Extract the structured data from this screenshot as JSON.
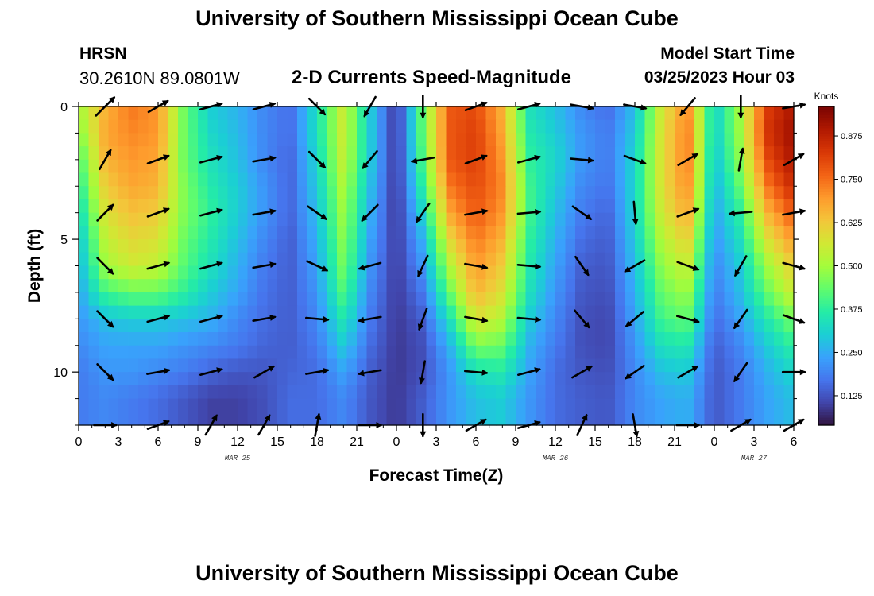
{
  "header": {
    "title": "University of Southern Mississippi Ocean Cube",
    "station": "HRSN",
    "coordinates": "30.2610N  89.0801W",
    "product": "2-D Currents Speed-Magnitude",
    "model_start_label": "Model Start Time",
    "model_start_value": "03/25/2023 Hour 03"
  },
  "footer": {
    "title": "University of Southern Mississippi Ocean Cube"
  },
  "chart_data": {
    "type": "heatmap",
    "title": "2-D Currents Speed-Magnitude",
    "xlabel": "Forecast Time(Z)",
    "ylabel": "Depth (ft)",
    "x_tick_labels": [
      "0",
      "3",
      "6",
      "9",
      "12",
      "15",
      "18",
      "21",
      "0",
      "3",
      "6",
      "9",
      "12",
      "15",
      "18",
      "21",
      "0",
      "3",
      "6"
    ],
    "x_ticks_hours_since_mar25_00z": [
      0,
      3,
      6,
      9,
      12,
      15,
      18,
      21,
      24,
      27,
      30,
      33,
      36,
      39,
      42,
      45,
      48,
      51,
      54
    ],
    "x_range_hours": [
      0,
      54
    ],
    "date_labels": [
      {
        "text": "MAR 25",
        "hour": 12
      },
      {
        "text": "MAR 26",
        "hour": 36
      },
      {
        "text": "MAR 27",
        "hour": 51
      }
    ],
    "y_tick_labels": [
      "0",
      "5",
      "10"
    ],
    "y_ticks_ft": [
      0,
      5,
      10
    ],
    "y_range_ft": [
      0,
      12
    ],
    "y_inverted": true,
    "colorbar": {
      "units": "Knots",
      "range": [
        0.04,
        0.96
      ],
      "tick_values": [
        0.125,
        0.25,
        0.375,
        0.5,
        0.625,
        0.75,
        0.875
      ],
      "tick_labels": [
        "0.125",
        "0.250",
        "0.375",
        "0.500",
        "0.625",
        "0.750",
        "0.875"
      ],
      "colors": [
        "#30123b",
        "#4145ab",
        "#4675ed",
        "#39a2fc",
        "#1bcfd4",
        "#24eca6",
        "#61fc6c",
        "#a4fc3b",
        "#d1e834",
        "#f3c63a",
        "#fe9b2d",
        "#f36315",
        "#d93806",
        "#b11901",
        "#7a0402"
      ]
    },
    "depth_levels_ft": [
      0,
      1,
      2,
      3,
      4,
      5,
      6,
      7,
      8,
      9,
      10,
      11
    ],
    "grid_hours": [
      0,
      2,
      4,
      6,
      8,
      10,
      12,
      14,
      16,
      18,
      20,
      22,
      24,
      26,
      28,
      30,
      32,
      34,
      36,
      38,
      40,
      42,
      44,
      46,
      48,
      50,
      52,
      54
    ],
    "speed_knots_by_depth": [
      [
        0.5,
        0.66,
        0.74,
        0.7,
        0.44,
        0.3,
        0.26,
        0.2,
        0.16,
        0.34,
        0.56,
        0.3,
        0.08,
        0.44,
        0.78,
        0.8,
        0.66,
        0.34,
        0.28,
        0.2,
        0.16,
        0.28,
        0.56,
        0.72,
        0.3,
        0.5,
        0.82,
        0.9
      ],
      [
        0.46,
        0.68,
        0.72,
        0.7,
        0.44,
        0.32,
        0.27,
        0.2,
        0.16,
        0.34,
        0.56,
        0.3,
        0.08,
        0.44,
        0.78,
        0.82,
        0.68,
        0.36,
        0.3,
        0.22,
        0.18,
        0.3,
        0.58,
        0.74,
        0.3,
        0.5,
        0.84,
        0.92
      ],
      [
        0.4,
        0.66,
        0.7,
        0.68,
        0.44,
        0.34,
        0.28,
        0.2,
        0.15,
        0.32,
        0.55,
        0.3,
        0.08,
        0.42,
        0.78,
        0.82,
        0.7,
        0.38,
        0.32,
        0.22,
        0.18,
        0.32,
        0.58,
        0.74,
        0.28,
        0.48,
        0.8,
        0.9
      ],
      [
        0.36,
        0.62,
        0.68,
        0.66,
        0.46,
        0.36,
        0.3,
        0.22,
        0.15,
        0.3,
        0.52,
        0.28,
        0.08,
        0.38,
        0.74,
        0.8,
        0.72,
        0.4,
        0.3,
        0.2,
        0.17,
        0.32,
        0.58,
        0.72,
        0.26,
        0.44,
        0.74,
        0.86
      ],
      [
        0.32,
        0.58,
        0.64,
        0.62,
        0.46,
        0.38,
        0.3,
        0.22,
        0.15,
        0.28,
        0.5,
        0.26,
        0.08,
        0.32,
        0.68,
        0.78,
        0.7,
        0.4,
        0.28,
        0.18,
        0.15,
        0.32,
        0.56,
        0.68,
        0.24,
        0.38,
        0.66,
        0.78
      ],
      [
        0.28,
        0.54,
        0.6,
        0.58,
        0.44,
        0.36,
        0.28,
        0.2,
        0.14,
        0.26,
        0.48,
        0.24,
        0.09,
        0.26,
        0.6,
        0.74,
        0.66,
        0.38,
        0.26,
        0.16,
        0.14,
        0.3,
        0.52,
        0.62,
        0.22,
        0.34,
        0.58,
        0.7
      ],
      [
        0.26,
        0.5,
        0.56,
        0.54,
        0.42,
        0.34,
        0.26,
        0.18,
        0.14,
        0.24,
        0.46,
        0.22,
        0.09,
        0.22,
        0.52,
        0.7,
        0.62,
        0.36,
        0.24,
        0.14,
        0.13,
        0.28,
        0.48,
        0.56,
        0.2,
        0.3,
        0.5,
        0.62
      ],
      [
        0.24,
        0.4,
        0.44,
        0.44,
        0.38,
        0.3,
        0.24,
        0.17,
        0.14,
        0.22,
        0.42,
        0.2,
        0.09,
        0.18,
        0.44,
        0.66,
        0.58,
        0.34,
        0.22,
        0.13,
        0.12,
        0.26,
        0.44,
        0.5,
        0.18,
        0.28,
        0.44,
        0.56
      ],
      [
        0.22,
        0.28,
        0.3,
        0.3,
        0.28,
        0.26,
        0.2,
        0.16,
        0.14,
        0.2,
        0.36,
        0.18,
        0.09,
        0.14,
        0.34,
        0.58,
        0.52,
        0.3,
        0.2,
        0.12,
        0.11,
        0.24,
        0.4,
        0.44,
        0.16,
        0.24,
        0.36,
        0.46
      ],
      [
        0.2,
        0.24,
        0.24,
        0.24,
        0.22,
        0.2,
        0.18,
        0.15,
        0.14,
        0.18,
        0.3,
        0.16,
        0.09,
        0.12,
        0.26,
        0.46,
        0.44,
        0.26,
        0.18,
        0.12,
        0.11,
        0.22,
        0.34,
        0.36,
        0.14,
        0.2,
        0.3,
        0.38
      ],
      [
        0.18,
        0.22,
        0.22,
        0.2,
        0.18,
        0.15,
        0.13,
        0.13,
        0.15,
        0.16,
        0.24,
        0.14,
        0.09,
        0.12,
        0.22,
        0.34,
        0.36,
        0.24,
        0.16,
        0.13,
        0.12,
        0.2,
        0.28,
        0.3,
        0.13,
        0.18,
        0.26,
        0.32
      ],
      [
        0.18,
        0.2,
        0.18,
        0.16,
        0.13,
        0.1,
        0.1,
        0.12,
        0.16,
        0.16,
        0.2,
        0.13,
        0.09,
        0.14,
        0.22,
        0.28,
        0.3,
        0.22,
        0.16,
        0.14,
        0.13,
        0.2,
        0.24,
        0.26,
        0.13,
        0.18,
        0.24,
        0.28
      ]
    ],
    "vectors": {
      "depths_ft": [
        0,
        2,
        4,
        6,
        8,
        10,
        12
      ],
      "hours": [
        0,
        4,
        8,
        12,
        16,
        20,
        24,
        28,
        32,
        36,
        40,
        44,
        48,
        52
      ],
      "angle_deg_clockwise_from_north": [
        [
          45,
          60,
          75,
          75,
          135,
          210,
          180,
          70,
          75,
          100,
          100,
          220,
          180,
          80
        ],
        [
          30,
          70,
          75,
          80,
          135,
          220,
          260,
          70,
          75,
          95,
          110,
          60,
          10,
          60
        ],
        [
          45,
          70,
          75,
          80,
          125,
          225,
          215,
          80,
          85,
          125,
          175,
          70,
          265,
          80
        ],
        [
          135,
          75,
          75,
          80,
          115,
          255,
          205,
          100,
          95,
          145,
          240,
          110,
          210,
          105
        ],
        [
          135,
          75,
          75,
          80,
          95,
          260,
          200,
          100,
          95,
          140,
          230,
          105,
          215,
          110
        ],
        [
          135,
          80,
          75,
          60,
          80,
          260,
          190,
          95,
          75,
          60,
          235,
          60,
          215,
          90
        ],
        [
          90,
          70,
          30,
          30,
          10,
          90,
          180,
          60,
          75,
          25,
          170,
          90,
          60,
          60
        ]
      ],
      "length_rel": [
        [
          0.7,
          0.6,
          0.6,
          0.6,
          0.6,
          0.6,
          0.6,
          0.6,
          0.6,
          0.6,
          0.6,
          0.6,
          0.6,
          0.6
        ],
        [
          0.6,
          0.6,
          0.6,
          0.6,
          0.6,
          0.6,
          0.6,
          0.6,
          0.6,
          0.6,
          0.6,
          0.6,
          0.6,
          0.6
        ],
        [
          0.6,
          0.6,
          0.6,
          0.6,
          0.6,
          0.6,
          0.6,
          0.6,
          0.6,
          0.6,
          0.6,
          0.6,
          0.6,
          0.6
        ],
        [
          0.6,
          0.6,
          0.6,
          0.6,
          0.6,
          0.6,
          0.6,
          0.6,
          0.6,
          0.6,
          0.6,
          0.6,
          0.6,
          0.6
        ],
        [
          0.6,
          0.6,
          0.6,
          0.6,
          0.6,
          0.6,
          0.6,
          0.6,
          0.6,
          0.6,
          0.6,
          0.6,
          0.6,
          0.6
        ],
        [
          0.6,
          0.6,
          0.6,
          0.6,
          0.6,
          0.6,
          0.6,
          0.6,
          0.6,
          0.6,
          0.6,
          0.6,
          0.6,
          0.6
        ],
        [
          0.6,
          0.6,
          0.6,
          0.6,
          0.6,
          0.6,
          0.6,
          0.6,
          0.6,
          0.6,
          0.6,
          0.6,
          0.6,
          0.6
        ]
      ]
    }
  }
}
